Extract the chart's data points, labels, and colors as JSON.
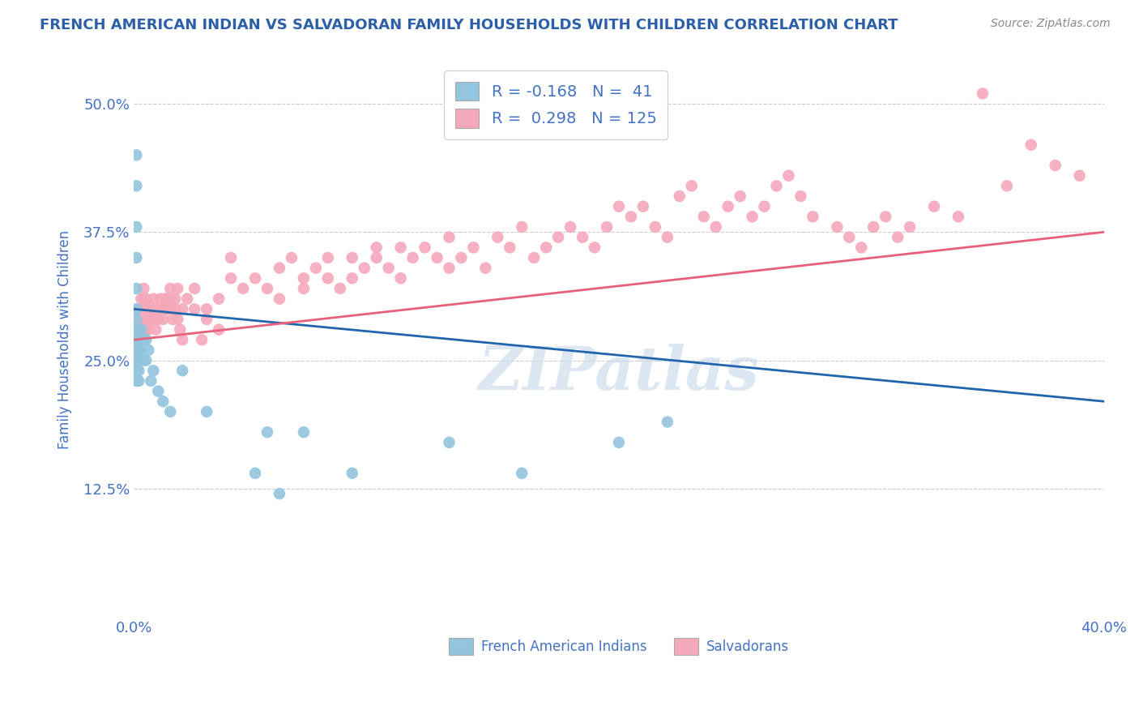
{
  "title": "FRENCH AMERICAN INDIAN VS SALVADORAN FAMILY HOUSEHOLDS WITH CHILDREN CORRELATION CHART",
  "source": "Source: ZipAtlas.com",
  "ylabel": "Family Households with Children",
  "blue_R": -0.168,
  "blue_N": 41,
  "pink_R": 0.298,
  "pink_N": 125,
  "xlim": [
    0.0,
    0.4
  ],
  "ylim": [
    0.0,
    0.54
  ],
  "xticks": [
    0.0,
    0.1,
    0.2,
    0.3,
    0.4
  ],
  "xtick_labels": [
    "0.0%",
    "",
    "",
    "",
    "40.0%"
  ],
  "yticks": [
    0.125,
    0.25,
    0.375,
    0.5
  ],
  "ytick_labels": [
    "12.5%",
    "25.0%",
    "37.5%",
    "50.0%"
  ],
  "blue_color": "#92c5de",
  "pink_color": "#f4a9bb",
  "blue_line_color": "#2166ac",
  "pink_line_color": "#d6604d",
  "title_color": "#2c5fa8",
  "tick_label_color": "#4472c4",
  "watermark": "ZIPatlas",
  "blue_trend": [
    0.0,
    0.4,
    0.3,
    0.21
  ],
  "pink_trend": [
    0.0,
    0.4,
    0.27,
    0.375
  ],
  "blue_dots": [
    [
      0.001,
      0.45
    ],
    [
      0.001,
      0.42
    ],
    [
      0.001,
      0.38
    ],
    [
      0.001,
      0.35
    ],
    [
      0.001,
      0.32
    ],
    [
      0.001,
      0.3
    ],
    [
      0.001,
      0.29
    ],
    [
      0.001,
      0.28
    ],
    [
      0.001,
      0.27
    ],
    [
      0.001,
      0.26
    ],
    [
      0.001,
      0.25
    ],
    [
      0.001,
      0.24
    ],
    [
      0.001,
      0.23
    ],
    [
      0.002,
      0.27
    ],
    [
      0.002,
      0.26
    ],
    [
      0.002,
      0.25
    ],
    [
      0.002,
      0.24
    ],
    [
      0.002,
      0.23
    ],
    [
      0.003,
      0.28
    ],
    [
      0.003,
      0.26
    ],
    [
      0.004,
      0.27
    ],
    [
      0.004,
      0.25
    ],
    [
      0.005,
      0.27
    ],
    [
      0.005,
      0.25
    ],
    [
      0.006,
      0.26
    ],
    [
      0.007,
      0.23
    ],
    [
      0.008,
      0.24
    ],
    [
      0.01,
      0.22
    ],
    [
      0.012,
      0.21
    ],
    [
      0.015,
      0.2
    ],
    [
      0.02,
      0.24
    ],
    [
      0.03,
      0.2
    ],
    [
      0.05,
      0.14
    ],
    [
      0.055,
      0.18
    ],
    [
      0.06,
      0.12
    ],
    [
      0.07,
      0.18
    ],
    [
      0.09,
      0.14
    ],
    [
      0.13,
      0.17
    ],
    [
      0.16,
      0.14
    ],
    [
      0.2,
      0.17
    ],
    [
      0.22,
      0.19
    ]
  ],
  "pink_dots": [
    [
      0.001,
      0.28
    ],
    [
      0.001,
      0.27
    ],
    [
      0.001,
      0.26
    ],
    [
      0.001,
      0.25
    ],
    [
      0.002,
      0.3
    ],
    [
      0.002,
      0.29
    ],
    [
      0.002,
      0.28
    ],
    [
      0.002,
      0.27
    ],
    [
      0.003,
      0.31
    ],
    [
      0.003,
      0.3
    ],
    [
      0.003,
      0.29
    ],
    [
      0.003,
      0.28
    ],
    [
      0.004,
      0.32
    ],
    [
      0.004,
      0.31
    ],
    [
      0.004,
      0.29
    ],
    [
      0.004,
      0.28
    ],
    [
      0.005,
      0.31
    ],
    [
      0.005,
      0.3
    ],
    [
      0.005,
      0.28
    ],
    [
      0.006,
      0.3
    ],
    [
      0.006,
      0.29
    ],
    [
      0.006,
      0.28
    ],
    [
      0.007,
      0.3
    ],
    [
      0.007,
      0.29
    ],
    [
      0.008,
      0.31
    ],
    [
      0.008,
      0.3
    ],
    [
      0.009,
      0.29
    ],
    [
      0.009,
      0.28
    ],
    [
      0.01,
      0.3
    ],
    [
      0.01,
      0.29
    ],
    [
      0.011,
      0.3
    ],
    [
      0.011,
      0.31
    ],
    [
      0.012,
      0.29
    ],
    [
      0.012,
      0.3
    ],
    [
      0.013,
      0.3
    ],
    [
      0.013,
      0.31
    ],
    [
      0.014,
      0.31
    ],
    [
      0.014,
      0.3
    ],
    [
      0.015,
      0.32
    ],
    [
      0.015,
      0.31
    ],
    [
      0.016,
      0.3
    ],
    [
      0.016,
      0.29
    ],
    [
      0.017,
      0.31
    ],
    [
      0.017,
      0.3
    ],
    [
      0.018,
      0.32
    ],
    [
      0.018,
      0.29
    ],
    [
      0.019,
      0.28
    ],
    [
      0.02,
      0.27
    ],
    [
      0.02,
      0.3
    ],
    [
      0.022,
      0.31
    ],
    [
      0.025,
      0.3
    ],
    [
      0.025,
      0.32
    ],
    [
      0.028,
      0.27
    ],
    [
      0.03,
      0.3
    ],
    [
      0.03,
      0.29
    ],
    [
      0.035,
      0.31
    ],
    [
      0.035,
      0.28
    ],
    [
      0.04,
      0.35
    ],
    [
      0.04,
      0.33
    ],
    [
      0.045,
      0.32
    ],
    [
      0.05,
      0.33
    ],
    [
      0.055,
      0.32
    ],
    [
      0.06,
      0.31
    ],
    [
      0.06,
      0.34
    ],
    [
      0.065,
      0.35
    ],
    [
      0.07,
      0.33
    ],
    [
      0.07,
      0.32
    ],
    [
      0.075,
      0.34
    ],
    [
      0.08,
      0.35
    ],
    [
      0.08,
      0.33
    ],
    [
      0.085,
      0.32
    ],
    [
      0.09,
      0.35
    ],
    [
      0.09,
      0.33
    ],
    [
      0.095,
      0.34
    ],
    [
      0.1,
      0.36
    ],
    [
      0.1,
      0.35
    ],
    [
      0.105,
      0.34
    ],
    [
      0.11,
      0.36
    ],
    [
      0.11,
      0.33
    ],
    [
      0.115,
      0.35
    ],
    [
      0.12,
      0.36
    ],
    [
      0.125,
      0.35
    ],
    [
      0.13,
      0.34
    ],
    [
      0.13,
      0.37
    ],
    [
      0.135,
      0.35
    ],
    [
      0.14,
      0.36
    ],
    [
      0.145,
      0.34
    ],
    [
      0.15,
      0.37
    ],
    [
      0.155,
      0.36
    ],
    [
      0.16,
      0.38
    ],
    [
      0.165,
      0.35
    ],
    [
      0.17,
      0.36
    ],
    [
      0.175,
      0.37
    ],
    [
      0.18,
      0.38
    ],
    [
      0.185,
      0.37
    ],
    [
      0.19,
      0.36
    ],
    [
      0.195,
      0.38
    ],
    [
      0.2,
      0.4
    ],
    [
      0.205,
      0.39
    ],
    [
      0.21,
      0.4
    ],
    [
      0.215,
      0.38
    ],
    [
      0.22,
      0.37
    ],
    [
      0.225,
      0.41
    ],
    [
      0.23,
      0.42
    ],
    [
      0.235,
      0.39
    ],
    [
      0.24,
      0.38
    ],
    [
      0.245,
      0.4
    ],
    [
      0.25,
      0.41
    ],
    [
      0.255,
      0.39
    ],
    [
      0.26,
      0.4
    ],
    [
      0.265,
      0.42
    ],
    [
      0.27,
      0.43
    ],
    [
      0.275,
      0.41
    ],
    [
      0.28,
      0.39
    ],
    [
      0.29,
      0.38
    ],
    [
      0.295,
      0.37
    ],
    [
      0.3,
      0.36
    ],
    [
      0.305,
      0.38
    ],
    [
      0.31,
      0.39
    ],
    [
      0.315,
      0.37
    ],
    [
      0.32,
      0.38
    ],
    [
      0.33,
      0.4
    ],
    [
      0.34,
      0.39
    ],
    [
      0.35,
      0.51
    ],
    [
      0.36,
      0.42
    ],
    [
      0.37,
      0.46
    ],
    [
      0.38,
      0.44
    ],
    [
      0.39,
      0.43
    ]
  ]
}
